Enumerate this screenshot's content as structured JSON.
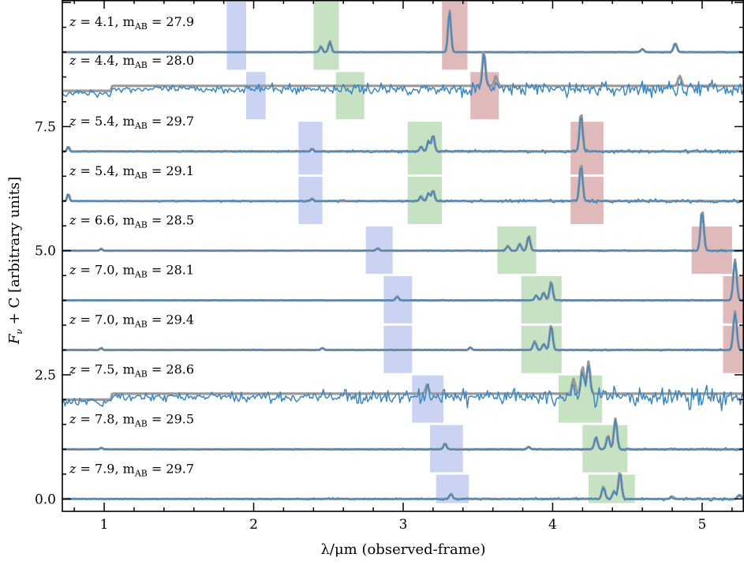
{
  "chart_data": {
    "type": "line",
    "xlabel": "λ/μm (observed-frame)",
    "ylabel": "F_ν + C [arbitrary units]",
    "xlim": [
      0.72,
      5.28
    ],
    "ylim": [
      -0.25,
      10.05
    ],
    "xticks": [
      1,
      2,
      3,
      4,
      5
    ],
    "yticks": [
      0.0,
      2.5,
      5.0,
      7.5
    ],
    "ytick_labels": [
      "0.0",
      "2.5",
      "5.0",
      "7.5"
    ],
    "band_colors": {
      "blue": "#b8c6ee",
      "green": "#b3d8ad",
      "red": "#d6a3a3"
    },
    "model_color": "#9a9a9a",
    "data_color": "#3c86c2",
    "spectra": [
      {
        "z": "4.1",
        "mag": "27.9",
        "offset": 9.0,
        "noise": 0.01,
        "cont": 0.0,
        "blue": [
          1.82,
          1.95
        ],
        "green": [
          2.4,
          2.57
        ],
        "red": [
          3.26,
          3.43
        ],
        "lines": [
          [
            2.45,
            0.12
          ],
          [
            2.51,
            0.22
          ],
          [
            3.31,
            0.85
          ],
          [
            4.6,
            0.06
          ],
          [
            4.82,
            0.18
          ]
        ]
      },
      {
        "z": "4.4",
        "mag": "28.0",
        "offset": 8.22,
        "noise": 0.1,
        "cont": 0.1,
        "blue": [
          1.95,
          2.08
        ],
        "green": [
          2.55,
          2.74
        ],
        "red": [
          3.45,
          3.64
        ],
        "lines": [
          [
            3.54,
            0.7
          ],
          [
            3.62,
            0.2
          ],
          [
            4.85,
            0.2
          ]
        ]
      },
      {
        "z": "5.4",
        "mag": "29.7",
        "offset": 7.0,
        "noise": 0.025,
        "cont": 0.0,
        "blue": [
          2.3,
          2.46
        ],
        "green": [
          3.03,
          3.26
        ],
        "red": [
          4.12,
          4.34
        ],
        "lines": [
          [
            0.76,
            0.1
          ],
          [
            2.39,
            0.06
          ],
          [
            3.12,
            0.1
          ],
          [
            3.17,
            0.22
          ],
          [
            3.2,
            0.33
          ],
          [
            4.19,
            0.78
          ]
        ]
      },
      {
        "z": "5.4",
        "mag": "29.1",
        "offset": 6.0,
        "noise": 0.025,
        "cont": 0.0,
        "blue": [
          2.3,
          2.46
        ],
        "green": [
          3.03,
          3.26
        ],
        "red": [
          4.12,
          4.34
        ],
        "lines": [
          [
            0.76,
            0.15
          ],
          [
            2.39,
            0.05
          ],
          [
            3.12,
            0.1
          ],
          [
            3.17,
            0.16
          ],
          [
            3.2,
            0.22
          ],
          [
            4.19,
            0.76
          ]
        ]
      },
      {
        "z": "6.6",
        "mag": "28.5",
        "offset": 5.0,
        "noise": 0.012,
        "cont": 0.0,
        "blue": [
          2.75,
          2.93
        ],
        "green": [
          3.63,
          3.89
        ],
        "red": [
          4.93,
          5.2
        ],
        "lines": [
          [
            0.98,
            0.04
          ],
          [
            2.83,
            0.05
          ],
          [
            3.7,
            0.1
          ],
          [
            3.78,
            0.14
          ],
          [
            3.84,
            0.3
          ],
          [
            5.0,
            0.82
          ]
        ]
      },
      {
        "z": "7.0",
        "mag": "28.1",
        "offset": 4.0,
        "noise": 0.012,
        "cont": 0.0,
        "blue": [
          2.87,
          3.06
        ],
        "green": [
          3.79,
          4.06
        ],
        "red": [
          5.14,
          5.28
        ],
        "lines": [
          [
            2.96,
            0.08
          ],
          [
            3.89,
            0.1
          ],
          [
            3.94,
            0.16
          ],
          [
            3.99,
            0.38
          ],
          [
            5.22,
            0.82
          ]
        ]
      },
      {
        "z": "7.0",
        "mag": "29.4",
        "offset": 3.0,
        "noise": 0.012,
        "cont": 0.0,
        "blue": [
          2.87,
          3.06
        ],
        "green": [
          3.79,
          4.06
        ],
        "red": [
          5.14,
          5.28
        ],
        "lines": [
          [
            0.98,
            0.04
          ],
          [
            2.46,
            0.04
          ],
          [
            3.45,
            0.05
          ],
          [
            3.88,
            0.18
          ],
          [
            3.94,
            0.12
          ],
          [
            3.99,
            0.5
          ],
          [
            5.22,
            0.78
          ]
        ]
      },
      {
        "z": "7.5",
        "mag": "28.6",
        "offset": 2.0,
        "noise": 0.12,
        "cont": 0.12,
        "blue": [
          3.06,
          3.27
        ],
        "green": [
          4.04,
          4.33
        ],
        "red": null,
        "lines": [
          [
            3.16,
            0.18
          ],
          [
            4.14,
            0.3
          ],
          [
            4.2,
            0.55
          ],
          [
            4.24,
            0.65
          ]
        ]
      },
      {
        "z": "7.8",
        "mag": "29.5",
        "offset": 1.0,
        "noise": 0.015,
        "cont": 0.0,
        "blue": [
          3.18,
          3.4
        ],
        "green": [
          4.2,
          4.5
        ],
        "red": null,
        "lines": [
          [
            0.98,
            0.03
          ],
          [
            3.28,
            0.12
          ],
          [
            3.84,
            0.05
          ],
          [
            4.29,
            0.25
          ],
          [
            4.37,
            0.28
          ],
          [
            4.42,
            0.62
          ]
        ]
      },
      {
        "z": "7.9",
        "mag": "29.7",
        "offset": 0.0,
        "noise": 0.02,
        "cont": 0.0,
        "blue": [
          3.22,
          3.44
        ],
        "green": [
          4.24,
          4.55
        ],
        "red": null,
        "lines": [
          [
            3.32,
            0.1
          ],
          [
            4.34,
            0.25
          ],
          [
            4.41,
            0.16
          ],
          [
            4.45,
            0.55
          ],
          [
            4.8,
            0.05
          ],
          [
            5.25,
            0.08
          ]
        ]
      }
    ]
  }
}
